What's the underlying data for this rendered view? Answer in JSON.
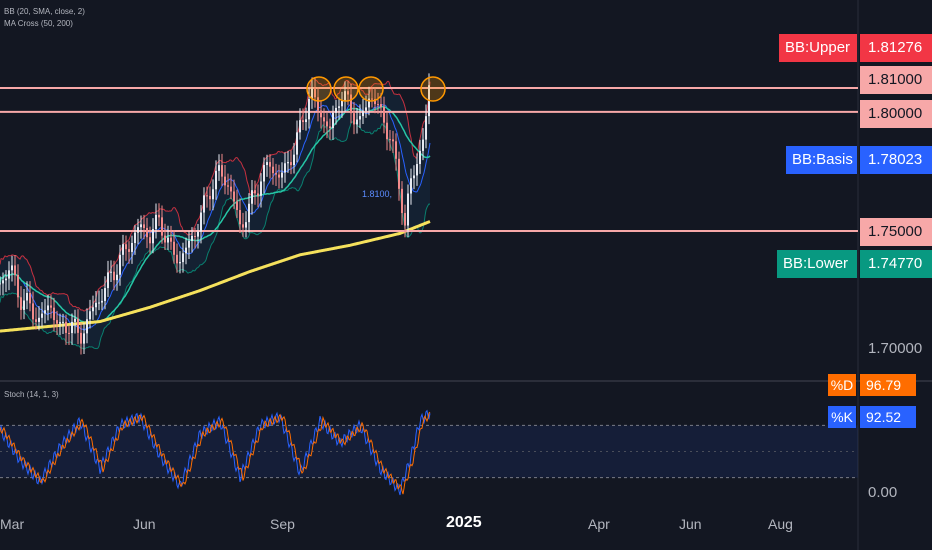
{
  "indicators": {
    "bb_label": "BB (20, SMA, close, 2)",
    "ma_label": "MA Cross (50, 200)",
    "stoch_label": "Stoch (14, 1, 3)"
  },
  "badges": {
    "upper": {
      "name": "BB:Upper",
      "value": "1.81276",
      "color": "#f23645"
    },
    "basis": {
      "name": "BB:Basis",
      "value": "1.78023",
      "color": "#2962ff"
    },
    "lower": {
      "name": "BB:Lower",
      "value": "1.74770",
      "color": "#089981"
    }
  },
  "price_levels": [
    "1.81000",
    "1.80000",
    "1.75000"
  ],
  "price_axis_label": "1.70000",
  "annotation": "1.8100,",
  "stoch": {
    "d_label": "%D",
    "d_value": "96.79",
    "k_label": "%K",
    "k_value": "92.52",
    "axis_zero": "0.00",
    "upper_band": 80,
    "lower_band": 20
  },
  "chart_data": {
    "type": "line",
    "x_ticks": [
      "Mar",
      "Jun",
      "Sep",
      "2025",
      "Apr",
      "Jun",
      "Aug"
    ],
    "horizontal_levels": [
      1.81,
      1.8,
      1.75
    ],
    "resistance_touches": 4,
    "close_approx": [
      [
        0,
        1.728
      ],
      [
        10,
        1.735
      ],
      [
        20,
        1.722
      ],
      [
        30,
        1.718
      ],
      [
        40,
        1.712
      ],
      [
        50,
        1.72
      ],
      [
        60,
        1.708
      ],
      [
        70,
        1.712
      ],
      [
        80,
        1.705
      ],
      [
        90,
        1.715
      ],
      [
        100,
        1.722
      ],
      [
        110,
        1.73
      ],
      [
        120,
        1.738
      ],
      [
        130,
        1.745
      ],
      [
        140,
        1.752
      ],
      [
        150,
        1.748
      ],
      [
        160,
        1.755
      ],
      [
        170,
        1.742
      ],
      [
        180,
        1.738
      ],
      [
        190,
        1.745
      ],
      [
        200,
        1.755
      ],
      [
        210,
        1.768
      ],
      [
        220,
        1.775
      ],
      [
        230,
        1.768
      ],
      [
        240,
        1.752
      ],
      [
        250,
        1.76
      ],
      [
        260,
        1.772
      ],
      [
        270,
        1.778
      ],
      [
        280,
        1.772
      ],
      [
        290,
        1.78
      ],
      [
        300,
        1.792
      ],
      [
        310,
        1.808
      ],
      [
        320,
        1.8
      ],
      [
        330,
        1.792
      ],
      [
        340,
        1.808
      ],
      [
        350,
        1.802
      ],
      [
        360,
        1.795
      ],
      [
        370,
        1.808
      ],
      [
        380,
        1.8
      ],
      [
        390,
        1.79
      ],
      [
        400,
        1.768
      ],
      [
        405,
        1.752
      ],
      [
        410,
        1.77
      ],
      [
        415,
        1.775
      ],
      [
        420,
        1.785
      ],
      [
        425,
        1.792
      ],
      [
        430,
        1.812
      ]
    ],
    "ma200_approx": [
      [
        0,
        1.708
      ],
      [
        50,
        1.71
      ],
      [
        100,
        1.712
      ],
      [
        150,
        1.718
      ],
      [
        200,
        1.725
      ],
      [
        250,
        1.733
      ],
      [
        300,
        1.74
      ],
      [
        350,
        1.744
      ],
      [
        400,
        1.749
      ],
      [
        430,
        1.754
      ]
    ],
    "stoch_k_approx": [
      [
        0,
        75
      ],
      [
        20,
        40
      ],
      [
        40,
        15
      ],
      [
        60,
        55
      ],
      [
        80,
        85
      ],
      [
        100,
        30
      ],
      [
        120,
        80
      ],
      [
        140,
        90
      ],
      [
        160,
        45
      ],
      [
        180,
        10
      ],
      [
        200,
        70
      ],
      [
        220,
        85
      ],
      [
        240,
        20
      ],
      [
        260,
        80
      ],
      [
        280,
        90
      ],
      [
        300,
        25
      ],
      [
        320,
        85
      ],
      [
        340,
        60
      ],
      [
        360,
        80
      ],
      [
        380,
        30
      ],
      [
        400,
        5
      ],
      [
        410,
        40
      ],
      [
        420,
        85
      ],
      [
        430,
        95
      ]
    ]
  }
}
